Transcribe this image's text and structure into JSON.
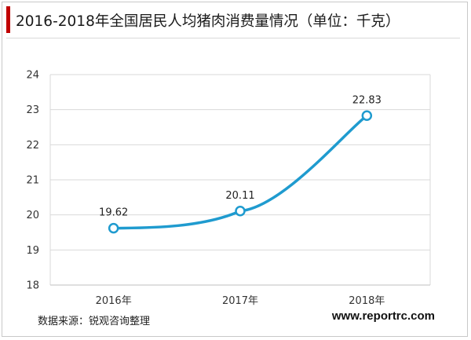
{
  "title": "2016-2018年全国居民人均猪肉消费量情况（单位：千克）",
  "source": "数据来源：锐观咨询整理",
  "website": "www.reportrc.com",
  "colors": {
    "accent": "#c00000",
    "line": "#1f9bcf",
    "grid": "#d9d9d9"
  },
  "chart_data": {
    "type": "line",
    "categories": [
      "2016年",
      "2017年",
      "2018年"
    ],
    "values": [
      19.62,
      20.11,
      22.83
    ],
    "value_labels": [
      "19.62",
      "20.11",
      "22.83"
    ],
    "ylim": [
      18,
      24
    ],
    "yticks": [
      "18",
      "19",
      "20",
      "21",
      "22",
      "23",
      "24"
    ],
    "grid": true,
    "smooth": true,
    "markers": "hollow-circle"
  }
}
